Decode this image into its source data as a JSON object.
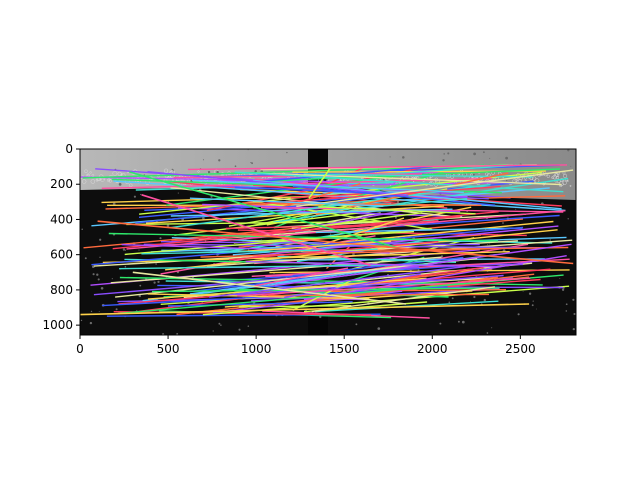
{
  "chart_data": {
    "type": "image-with-match-lines",
    "title": "",
    "xlabel": "",
    "ylabel": "",
    "xlim": [
      0,
      2816
    ],
    "ylim": [
      1056,
      0
    ],
    "image_panels": [
      {
        "name": "left-image",
        "x_range": [
          0,
          1408
        ],
        "y_range": [
          0,
          1056
        ]
      },
      {
        "name": "right-image",
        "x_range": [
          1408,
          2816
        ],
        "y_range": [
          0,
          1056
        ]
      }
    ],
    "xticks": [
      0,
      500,
      1000,
      1500,
      2000,
      2500
    ],
    "xtick_labels": [
      "0",
      "500",
      "1000",
      "1500",
      "2000",
      "2500"
    ],
    "yticks": [
      0,
      200,
      400,
      600,
      800,
      1000
    ],
    "ytick_labels": [
      "0",
      "200",
      "400",
      "600",
      "800",
      "1000"
    ],
    "grid": false,
    "colors": {
      "background_sky": "#a8a8a8",
      "background_dark": "#101010",
      "match_line_palette": [
        "#ff4fa0",
        "#3b5bff",
        "#2ee86a",
        "#ffd24a",
        "#b04cff",
        "#ff6a3d",
        "#3fe0d0",
        "#c8ff4a",
        "#ff3b5c",
        "#5ac8ff",
        "#e8e8a0",
        "#8a4dff"
      ]
    },
    "match_line_count": 190,
    "sample_matches": [
      {
        "x1": 280,
        "y1": 130,
        "x2": 1800,
        "y2": 560
      },
      {
        "x1": 1300,
        "y1": 280,
        "x2": 1420,
        "y2": 110
      },
      {
        "x1": 350,
        "y1": 260,
        "x2": 1650,
        "y2": 660
      },
      {
        "x1": 100,
        "y1": 410,
        "x2": 2800,
        "y2": 650
      },
      {
        "x1": 300,
        "y1": 700,
        "x2": 1850,
        "y2": 880
      },
      {
        "x1": 0,
        "y1": 940,
        "x2": 2550,
        "y2": 880
      }
    ]
  }
}
